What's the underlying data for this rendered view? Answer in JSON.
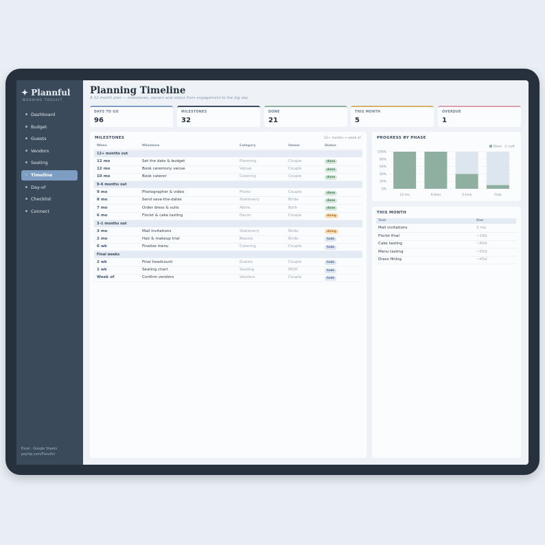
{
  "sidebar": {
    "logo": "✦ Plannful",
    "tagline": "WEDDING TOOLKIT",
    "nav": [
      "Dashboard",
      "Budget",
      "Guests",
      "Vendors",
      "Seating",
      "Timeline",
      "Day-of",
      "Checklist",
      "Connect"
    ],
    "active": 5,
    "footer": [
      "Excel · Google Sheets",
      "payhip.com/Plannful"
    ]
  },
  "header": {
    "title": "Planning Timeline",
    "subtitle": "A 12-month plan — milestones, owners and status from engagement to the big day"
  },
  "kpis": [
    {
      "label": "DAYS TO GO",
      "value": 96,
      "color": "#7d9ec2"
    },
    {
      "label": "MILESTONES",
      "value": 32,
      "color": "#3b4a5a"
    },
    {
      "label": "DONE",
      "value": 21,
      "color": "#8fb0a0"
    },
    {
      "label": "THIS MONTH",
      "value": 5,
      "color": "#d8b066"
    },
    {
      "label": "OVERDUE",
      "value": 1,
      "color": "#d9a2ab"
    }
  ],
  "milestones": {
    "title": "MILESTONES",
    "range": "12+ months → week of",
    "columns": [
      "When",
      "Milestone",
      "Category",
      "Owner",
      "Status"
    ],
    "groups": [
      {
        "name": "12+ months out",
        "rows": [
          [
            "12 mo",
            "Set the date & budget",
            "Planning",
            "Couple",
            "done"
          ],
          [
            "12 mo",
            "Book ceremony venue",
            "Venue",
            "Couple",
            "done"
          ],
          [
            "10 mo",
            "Book caterer",
            "Catering",
            "Couple",
            "done"
          ]
        ]
      },
      {
        "name": "9–6 months out",
        "rows": [
          [
            "9 mo",
            "Photographer & video",
            "Photo",
            "Couple",
            "done"
          ],
          [
            "8 mo",
            "Send save-the-dates",
            "Stationery",
            "Bride",
            "done"
          ],
          [
            "7 mo",
            "Order dress & suits",
            "Attire",
            "Both",
            "done"
          ],
          [
            "6 mo",
            "Florist & cake tasting",
            "Decor",
            "Couple",
            "doing"
          ]
        ]
      },
      {
        "name": "3–1 months out",
        "rows": [
          [
            "3 mo",
            "Mail invitations",
            "Stationery",
            "Bride",
            "doing"
          ],
          [
            "2 mo",
            "Hair & makeup trial",
            "Beauty",
            "Bride",
            "todo"
          ],
          [
            "6 wk",
            "Finalize menu",
            "Catering",
            "Couple",
            "todo"
          ]
        ]
      },
      {
        "name": "Final weeks",
        "rows": [
          [
            "2 wk",
            "Final headcount",
            "Guests",
            "Couple",
            "todo"
          ],
          [
            "1 wk",
            "Seating chart",
            "Seating",
            "MOH",
            "todo"
          ],
          [
            "Week of",
            "Confirm vendors",
            "Vendors",
            "Couple",
            "todo"
          ]
        ]
      }
    ]
  },
  "progress": {
    "title": "PROGRESS BY PHASE",
    "chart_data": {
      "type": "bar",
      "stacked": true,
      "categories": [
        "12 mo",
        "9-6mo",
        "3-1mo",
        "Final"
      ],
      "series": [
        {
          "name": "Done",
          "color": "#8fb0a0",
          "values": [
            100,
            100,
            40,
            10
          ]
        },
        {
          "name": "Left",
          "color": "#dde5ee",
          "values": [
            0,
            0,
            60,
            90
          ]
        }
      ],
      "ylim": [
        0,
        100
      ],
      "yticks": [
        {
          "value": 0,
          "label": "0%"
        },
        {
          "value": 20,
          "label": "20%"
        },
        {
          "value": 40,
          "label": "40%"
        },
        {
          "value": 60,
          "label": "60%"
        },
        {
          "value": 80,
          "label": "80%"
        },
        {
          "value": 100,
          "label": "100%"
        }
      ],
      "grid": true,
      "legend": "top-right"
    }
  },
  "this_month": {
    "title": "THIS MONTH",
    "columns": [
      "Task",
      "Due"
    ],
    "rows": [
      [
        "Mail invitations",
        "3 mo"
      ],
      [
        "Florist final",
        "~18d"
      ],
      [
        "Cake tasting",
        "~60d"
      ],
      [
        "Menu tasting",
        "~55d"
      ],
      [
        "Dress fitting",
        "~45d"
      ]
    ]
  }
}
